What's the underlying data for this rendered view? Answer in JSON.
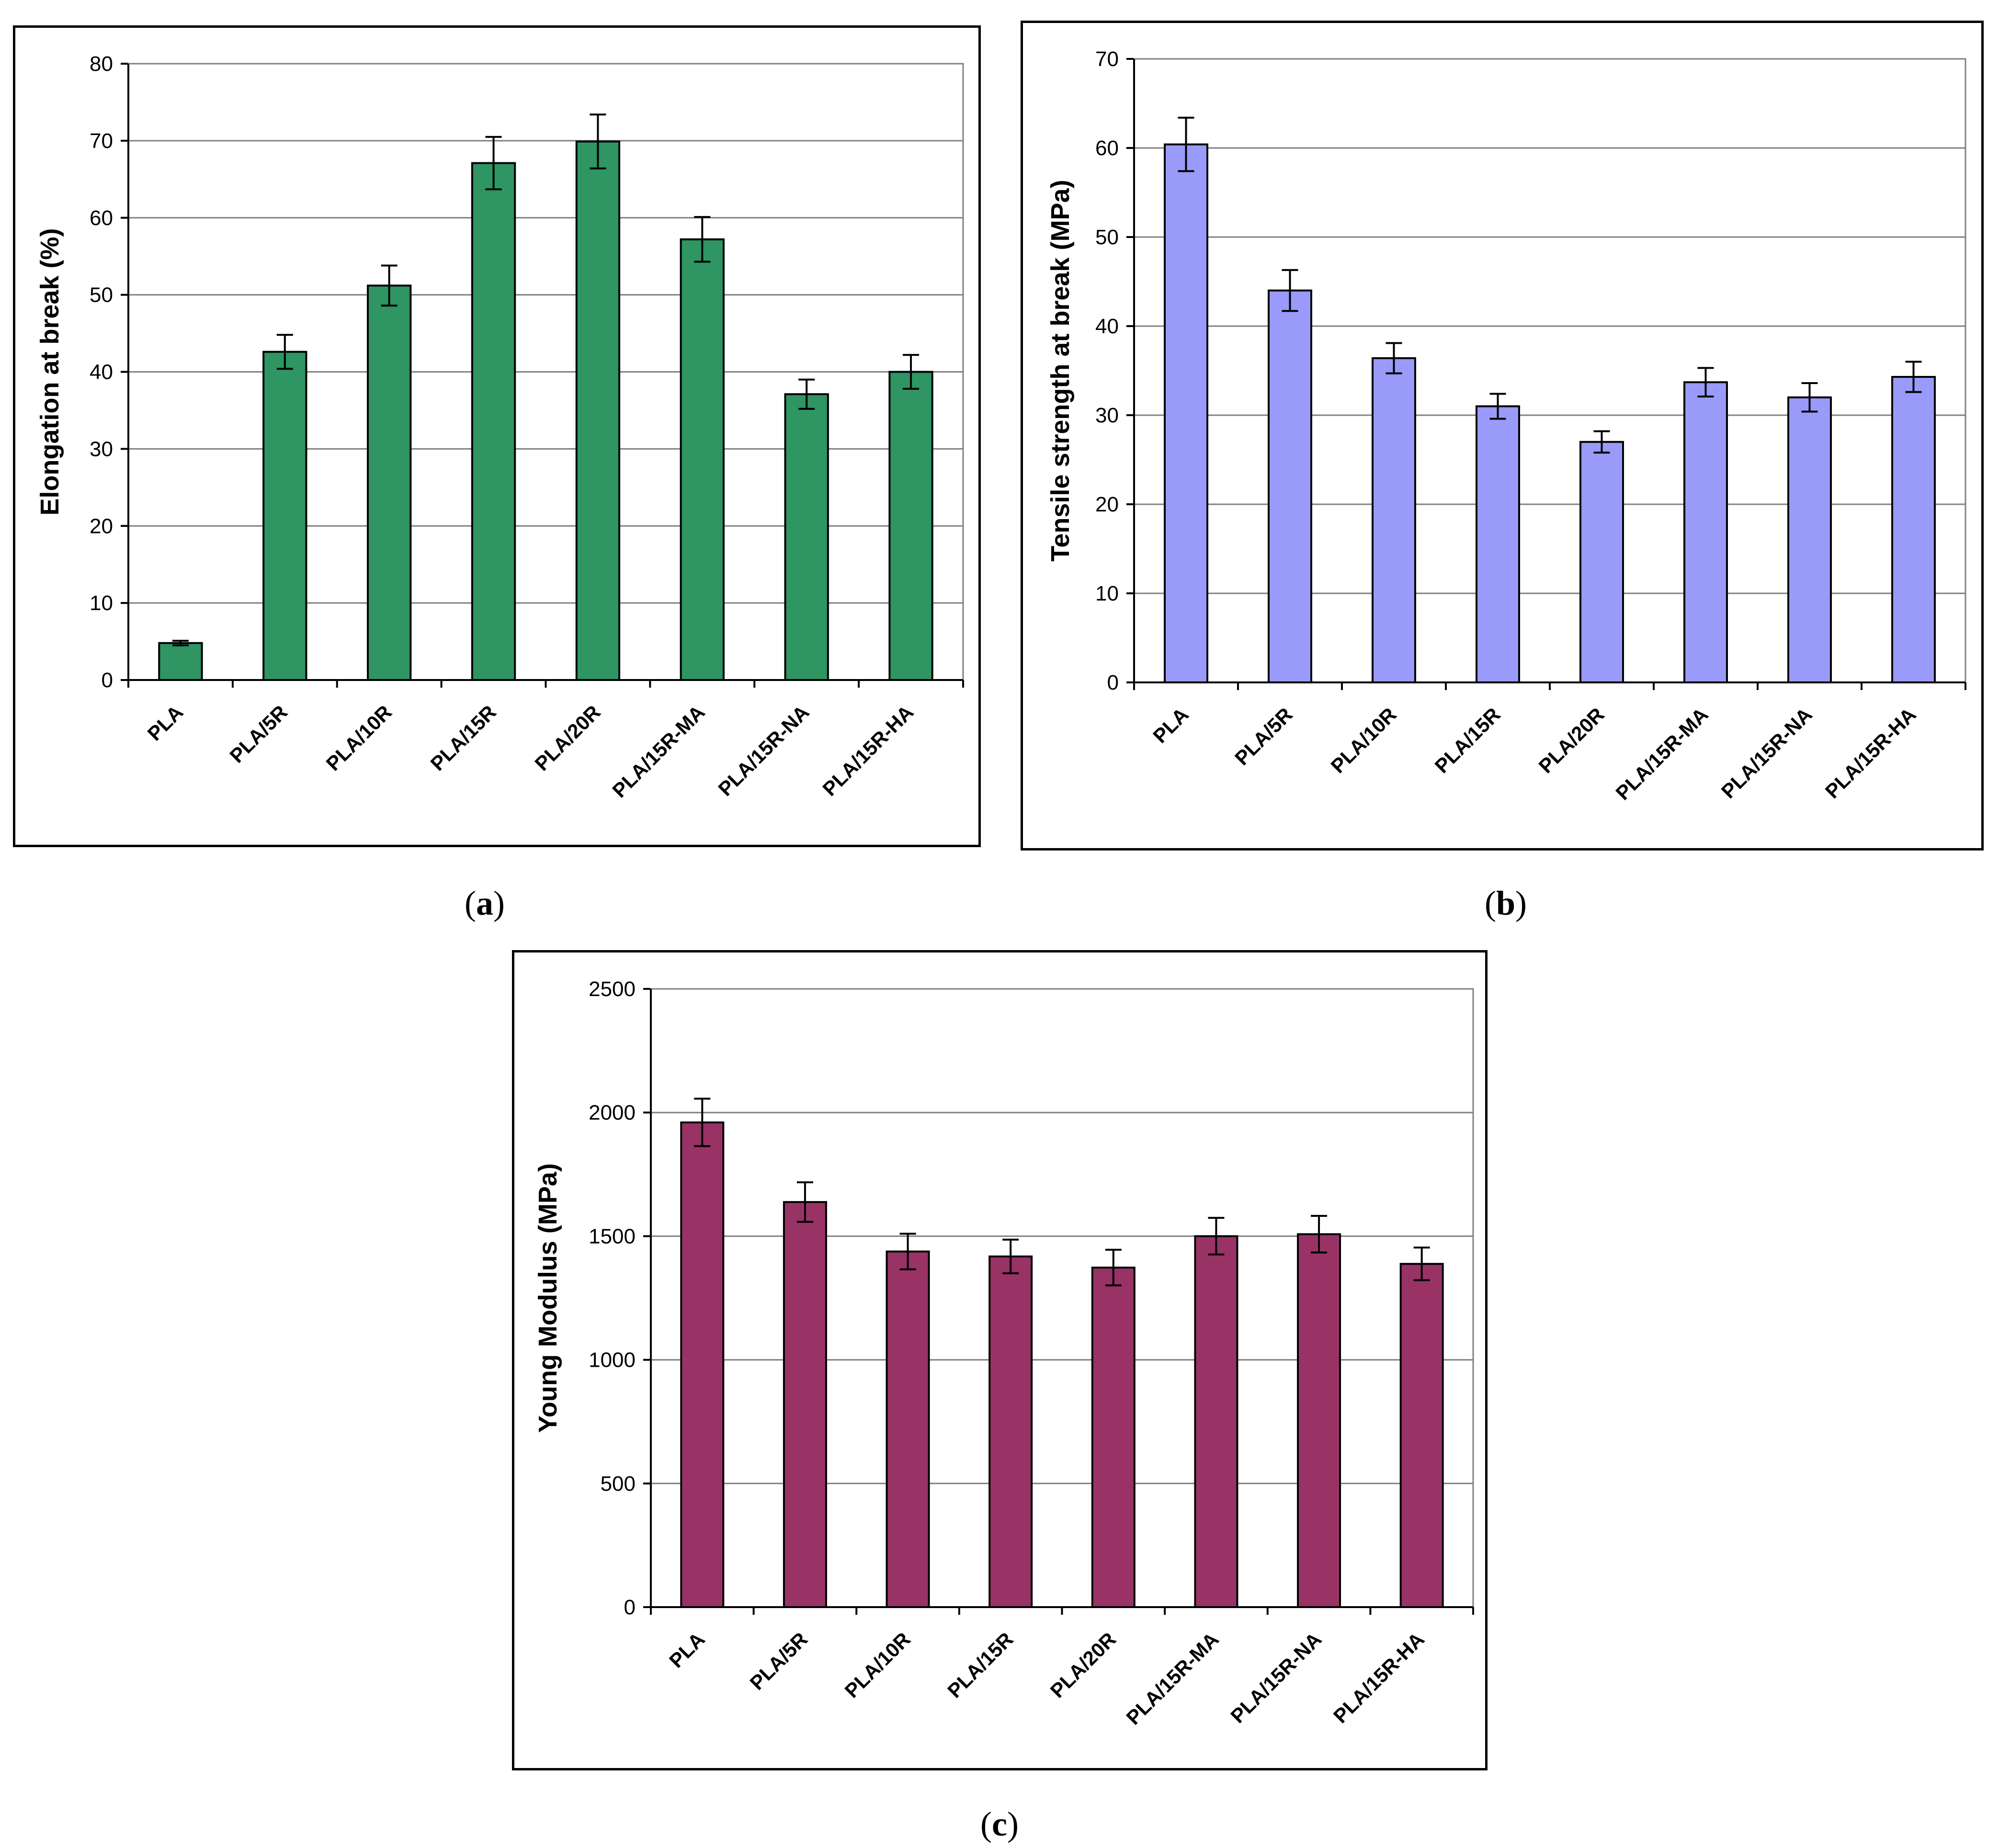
{
  "colors": {
    "panel_a_bar": "#2e9563",
    "panel_b_bar": "#9a9afa",
    "panel_c_bar": "#993366",
    "gridline": "#808080",
    "axis": "#000000"
  },
  "captions": [
    {
      "open": "(",
      "letter": "a",
      "close": ")"
    },
    {
      "open": "(",
      "letter": "b",
      "close": ")"
    },
    {
      "open": "(",
      "letter": "c",
      "close": ")"
    }
  ],
  "chart_data": [
    {
      "id": "a",
      "type": "bar",
      "title": "",
      "xlabel": "",
      "ylabel": "Elongation at break (%)",
      "ylim": [
        0,
        80
      ],
      "yticks": [
        0,
        10,
        20,
        30,
        40,
        50,
        60,
        70,
        80
      ],
      "grid": true,
      "categories": [
        "PLA",
        "PLA/5R",
        "PLA/10R",
        "PLA/15R",
        "PLA/20R",
        "PLA/15R-MA",
        "PLA/15R-NA",
        "PLA/15R-HA"
      ],
      "values": [
        4.8,
        42.6,
        51.2,
        67.1,
        69.9,
        57.2,
        37.1,
        40.0
      ],
      "errors": [
        0.3,
        2.2,
        2.6,
        3.4,
        3.5,
        2.9,
        1.9,
        2.2
      ]
    },
    {
      "id": "b",
      "type": "bar",
      "title": "",
      "xlabel": "",
      "ylabel": "Tensile strength at break (MPa)",
      "ylim": [
        0,
        70
      ],
      "yticks": [
        0,
        10,
        20,
        30,
        40,
        50,
        60,
        70
      ],
      "grid": true,
      "categories": [
        "PLA",
        "PLA/5R",
        "PLA/10R",
        "PLA/15R",
        "PLA/20R",
        "PLA/15R-MA",
        "PLA/15R-NA",
        "PLA/15R-HA"
      ],
      "values": [
        60.4,
        44.0,
        36.4,
        31.0,
        27.0,
        33.7,
        32.0,
        34.3
      ],
      "errors": [
        3.0,
        2.3,
        1.7,
        1.4,
        1.2,
        1.6,
        1.6,
        1.7
      ]
    },
    {
      "id": "c",
      "type": "bar",
      "title": "",
      "xlabel": "",
      "ylabel": "Young Modulus (MPa)",
      "ylim": [
        0,
        2500
      ],
      "yticks": [
        0,
        500,
        1000,
        1500,
        2000,
        2500
      ],
      "grid": true,
      "categories": [
        "PLA",
        "PLA/5R",
        "PLA/10R",
        "PLA/15R",
        "PLA/20R",
        "PLA/15R-MA",
        "PLA/15R-NA",
        "PLA/15R-HA"
      ],
      "values": [
        1960,
        1638,
        1438,
        1418,
        1373,
        1500,
        1508,
        1388
      ],
      "errors": [
        96,
        80,
        72,
        68,
        72,
        74,
        74,
        66
      ]
    }
  ]
}
